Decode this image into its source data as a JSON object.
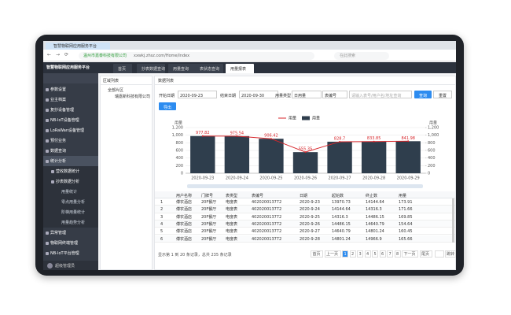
{
  "browser": {
    "tab": "智慧物联网应用服务平台",
    "site": "温州市嘉泰科技有限公司",
    "url": "xxwkj.zhsz.com/Home/Index",
    "search": "在此搜索"
  },
  "app": {
    "title": "智慧物联网应用服务平台",
    "tabs": [
      "首页",
      "抄表数据查询",
      "用量查询",
      "表状态查询",
      "用量报表"
    ]
  },
  "sidebar": {
    "menu": [
      {
        "label": "参数设置"
      },
      {
        "label": "业主档案"
      },
      {
        "label": "复抄设备管理"
      },
      {
        "label": "NB-IoT设备管理"
      },
      {
        "label": "LoRaWan设备管理"
      },
      {
        "label": "预付业务"
      },
      {
        "label": "数据查询"
      },
      {
        "label": "统计分析",
        "children": [
          {
            "label": "营收数据统计"
          },
          {
            "label": "抄表数据分析",
            "children": [
              {
                "label": "用量统计"
              },
              {
                "label": "零点用量分析"
              },
              {
                "label": "阶梯用量统计"
              },
              {
                "label": "用量趋势分析"
              }
            ]
          }
        ]
      },
      {
        "label": "异常管理"
      },
      {
        "label": "物联网终端管理"
      },
      {
        "label": "NB-IoT平台管理"
      }
    ],
    "user": "超级管理员"
  },
  "tree": {
    "title": "区域列表",
    "root": "全部片区",
    "child": "瑞嘉新科技有限公司"
  },
  "panel": {
    "title": "数据列表",
    "start_label": "开始日期",
    "start": "2020-09-23",
    "end_label": "结束日期",
    "end": "2020-09-30",
    "type_label": "用量类型",
    "type": "日用量",
    "meter": "表编号",
    "keyword": "请输入表号/用户名/地址查询",
    "search": "查询",
    "reset": "重置",
    "export": "导出"
  },
  "chart": {
    "type": "bar",
    "y_label": "用量",
    "y2_label": "用量",
    "categories": [
      "2020-09-23",
      "2020-09-24",
      "2020-09-25",
      "2020-09-26",
      "2020-09-27",
      "2020-09-28",
      "2020-09-29"
    ],
    "series": [
      {
        "name": "用量",
        "type": "line",
        "color": "#d7262b",
        "values": [
          977.82,
          975.54,
          906.42,
          555.35,
          828.7,
          833.85,
          841.98
        ]
      },
      {
        "name": "用量",
        "type": "bar",
        "color": "#2f3e4d",
        "values": [
          977.82,
          975.54,
          906.42,
          555.35,
          828.7,
          833.85,
          841.98
        ]
      }
    ],
    "ylim": [
      0,
      1200
    ],
    "yticks": [
      0,
      200,
      400,
      600,
      800,
      {
        "value": 1000,
        "label": "1,000"
      },
      {
        "value": 1200,
        "label": "1,200"
      }
    ],
    "y2lim": [
      0,
      1200
    ],
    "y2ticks": [
      0,
      200,
      400,
      600,
      800,
      {
        "value": 1000,
        "label": "1,000"
      },
      {
        "value": 1200,
        "label": "1,200"
      }
    ],
    "grid": true
  },
  "table": {
    "columns": [
      "用户名称",
      "门牌号",
      "表类型",
      "表编号",
      "日期",
      "起始数",
      "终止数",
      "用量"
    ],
    "rows": [
      [
        "1",
        "傅农酒店",
        "20F餐厅",
        "电度表",
        "402020013772",
        "2020-9-23",
        "13970.73",
        "14144.64",
        "173.91"
      ],
      [
        "2",
        "傅农酒店",
        "20F餐厅",
        "电度表",
        "402020013772",
        "2020-9-24",
        "14144.64",
        "14316.3",
        "171.66"
      ],
      [
        "3",
        "傅农酒店",
        "20F餐厅",
        "电度表",
        "402020013772",
        "2020-9-25",
        "14316.3",
        "14486.15",
        "169.85"
      ],
      [
        "4",
        "傅农酒店",
        "20F餐厅",
        "电度表",
        "402020013772",
        "2020-9-26",
        "14486.15",
        "14640.79",
        "154.64"
      ],
      [
        "5",
        "傅农酒店",
        "20F餐厅",
        "电度表",
        "402020013772",
        "2020-9-27",
        "14640.79",
        "14801.24",
        "160.45"
      ],
      [
        "6",
        "傅农酒店",
        "20F餐厅",
        "电度表",
        "402020013772",
        "2020-9-28",
        "14801.24",
        "14966.9",
        "165.66"
      ]
    ]
  },
  "footer": {
    "summary": "显示第 1 到 20 条记录，总共 235 条记录",
    "pages": [
      "首页",
      "上一页",
      "1",
      "2",
      "3",
      "4",
      "5",
      "6",
      "7",
      "8",
      "下一页",
      "尾页"
    ],
    "jump": "跳转"
  }
}
